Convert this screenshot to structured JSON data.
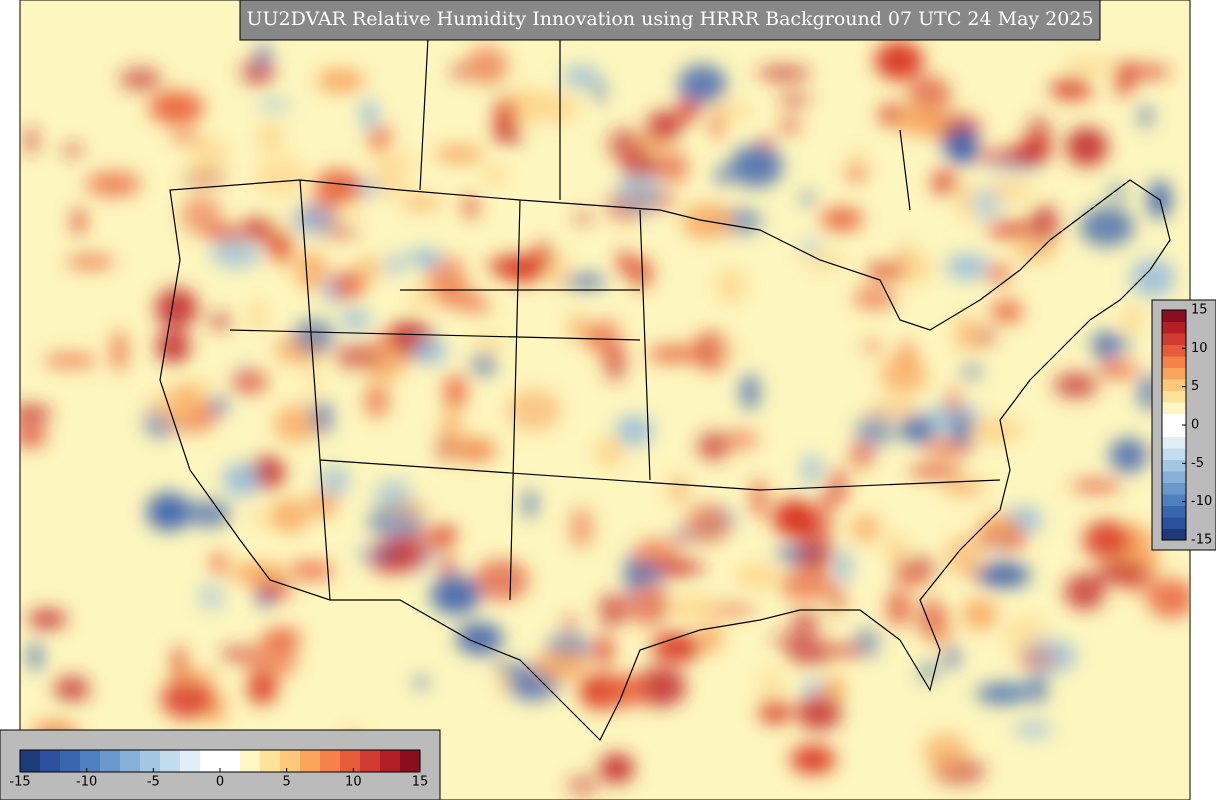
{
  "title": "UU2DVAR Relative Humidity Innovation using HRRR Background 07 UTC 24 May 2025",
  "colorbar": {
    "range": [
      -15,
      15
    ],
    "ticks": [
      -15,
      -10,
      -5,
      0,
      5,
      10,
      15
    ],
    "colors": [
      "#1f3a78",
      "#2c4f9e",
      "#3a66b0",
      "#4f7fbf",
      "#6a98cc",
      "#86b0d8",
      "#a3c6e3",
      "#c2dced",
      "#e0eff5",
      "#ffffff",
      "#ffffff",
      "#fef6c4",
      "#fde39a",
      "#fcc97a",
      "#f9a65c",
      "#f4824a",
      "#e65b3a",
      "#d13a2e",
      "#b41f26",
      "#8a0f1e"
    ]
  }
}
